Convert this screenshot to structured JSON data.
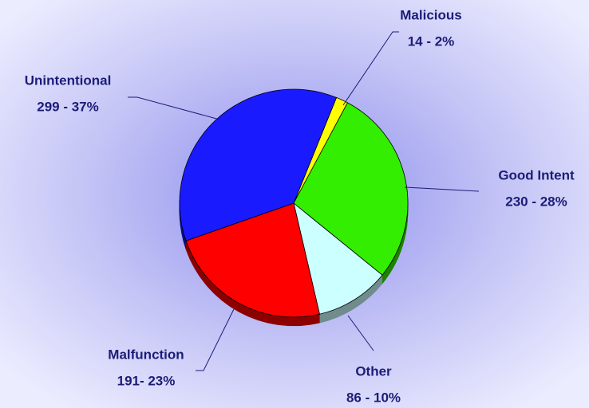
{
  "chart_data": {
    "type": "pie",
    "categories": [
      "Malicious",
      "Good Intent",
      "Other",
      "Malfunction",
      "Unintentional"
    ],
    "values": [
      14,
      230,
      86,
      191,
      299
    ],
    "value_labels": [
      "14 - 2%",
      "230 - 28%",
      "86 - 10%",
      "191- 23%",
      "299 - 37%"
    ],
    "colors": [
      "#ffff00",
      "#33ee00",
      "#ccffff",
      "#ff0000",
      "#1a1aff"
    ]
  }
}
